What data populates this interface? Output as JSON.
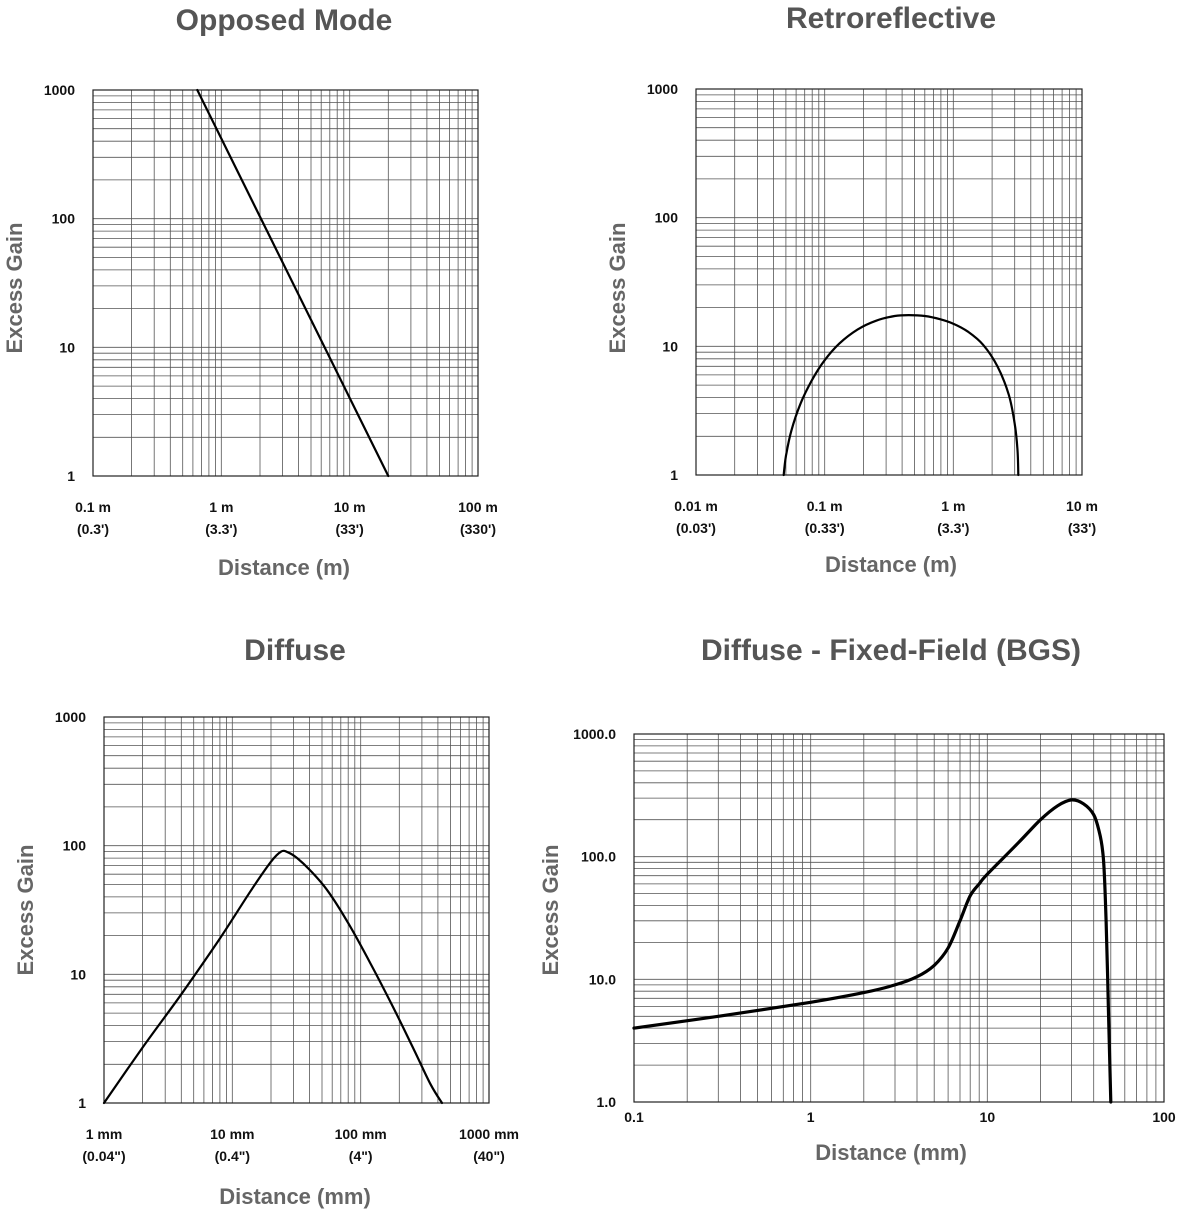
{
  "chart_data": [
    {
      "type": "line",
      "title": "Opposed Mode",
      "xlabel": "Distance (m)",
      "ylabel": "Excess Gain",
      "xscale": "log",
      "yscale": "log",
      "xlim": [
        0.1,
        100
      ],
      "ylim": [
        1,
        1000
      ],
      "xticks": [
        {
          "value": 0.1,
          "label": "0.1 m",
          "sublabel": "(0.3')"
        },
        {
          "value": 1,
          "label": "1 m",
          "sublabel": "(3.3')"
        },
        {
          "value": 10,
          "label": "10 m",
          "sublabel": "(33')"
        },
        {
          "value": 100,
          "label": "100 m",
          "sublabel": "(330')"
        }
      ],
      "yticks": [
        {
          "value": 1,
          "label": "1"
        },
        {
          "value": 10,
          "label": "10"
        },
        {
          "value": 100,
          "label": "100"
        },
        {
          "value": 1000,
          "label": "1000"
        }
      ],
      "series": [
        {
          "name": "Excess Gain",
          "x": [
            0.65,
            20
          ],
          "y": [
            1000,
            1
          ]
        }
      ]
    },
    {
      "type": "line",
      "title": "Retroreflective",
      "xlabel": "Distance (m)",
      "ylabel": "Excess Gain",
      "xscale": "log",
      "yscale": "log",
      "xlim": [
        0.01,
        10
      ],
      "ylim": [
        1,
        1000
      ],
      "xticks": [
        {
          "value": 0.01,
          "label": "0.01 m",
          "sublabel": "(0.03')"
        },
        {
          "value": 0.1,
          "label": "0.1 m",
          "sublabel": "(0.33')"
        },
        {
          "value": 1,
          "label": "1 m",
          "sublabel": "(3.3')"
        },
        {
          "value": 10,
          "label": "10 m",
          "sublabel": "(33')"
        }
      ],
      "yticks": [
        {
          "value": 1,
          "label": "1"
        },
        {
          "value": 10,
          "label": "10"
        },
        {
          "value": 100,
          "label": "100"
        },
        {
          "value": 1000,
          "label": "1000"
        }
      ],
      "series": [
        {
          "name": "Excess Gain",
          "x": [
            0.048,
            0.05,
            0.055,
            0.065,
            0.08,
            0.1,
            0.13,
            0.18,
            0.25,
            0.35,
            0.45,
            0.6,
            0.8,
            1.0,
            1.3,
            1.7,
            2.2,
            2.7,
            3.0,
            3.15,
            3.2
          ],
          "y": [
            1,
            1.4,
            2.2,
            3.6,
            5.5,
            7.8,
            10.5,
            13.5,
            15.8,
            17.2,
            17.5,
            17.2,
            16.2,
            15.0,
            13.0,
            10.3,
            7.0,
            4.2,
            2.5,
            1.6,
            1
          ]
        }
      ]
    },
    {
      "type": "line",
      "title": "Diffuse",
      "xlabel": "Distance (mm)",
      "ylabel": "Excess Gain",
      "xscale": "log",
      "yscale": "log",
      "xlim": [
        1,
        1000
      ],
      "ylim": [
        1,
        1000
      ],
      "xticks": [
        {
          "value": 1,
          "label": "1 mm",
          "sublabel": "(0.04\")"
        },
        {
          "value": 10,
          "label": "10 mm",
          "sublabel": "(0.4\")"
        },
        {
          "value": 100,
          "label": "100 mm",
          "sublabel": "(4\")"
        },
        {
          "value": 1000,
          "label": "1000 mm",
          "sublabel": "(40\")"
        }
      ],
      "yticks": [
        {
          "value": 1,
          "label": "1"
        },
        {
          "value": 10,
          "label": "10"
        },
        {
          "value": 100,
          "label": "100"
        },
        {
          "value": 1000,
          "label": "1000"
        }
      ],
      "series": [
        {
          "name": "Excess Gain",
          "x": [
            1,
            2,
            4,
            8,
            14,
            20,
            24,
            27,
            32,
            40,
            55,
            80,
            120,
            180,
            260,
            350,
            430
          ],
          "y": [
            1,
            2.7,
            7,
            19,
            45,
            75,
            90,
            89,
            80,
            65,
            45,
            25,
            12,
            5.5,
            2.6,
            1.4,
            1
          ]
        }
      ]
    },
    {
      "type": "line",
      "title": "Diffuse - Fixed-Field (BGS)",
      "xlabel": "Distance (mm)",
      "ylabel": "Excess Gain",
      "xscale": "log",
      "yscale": "log",
      "xlim": [
        0.1,
        100
      ],
      "ylim": [
        1,
        1000
      ],
      "xticks": [
        {
          "value": 0.1,
          "label": "0.1"
        },
        {
          "value": 1,
          "label": "1"
        },
        {
          "value": 10,
          "label": "10"
        },
        {
          "value": 100,
          "label": "100"
        }
      ],
      "yticks": [
        {
          "value": 1,
          "label": "1.0"
        },
        {
          "value": 10,
          "label": "10.0"
        },
        {
          "value": 100,
          "label": "100.0"
        },
        {
          "value": 1000,
          "label": "1000.0"
        }
      ],
      "series": [
        {
          "name": "Excess Gain",
          "x": [
            0.1,
            0.3,
            1,
            2,
            3,
            4,
            5,
            6,
            7,
            8,
            9,
            10,
            15,
            20,
            25,
            30,
            35,
            40,
            43,
            45,
            46,
            47,
            48,
            49,
            50
          ],
          "y": [
            4,
            5,
            6.5,
            7.8,
            9,
            10.5,
            13,
            18,
            30,
            48,
            60,
            72,
            130,
            200,
            260,
            290,
            270,
            220,
            160,
            110,
            70,
            30,
            10,
            3,
            1
          ]
        }
      ]
    }
  ]
}
